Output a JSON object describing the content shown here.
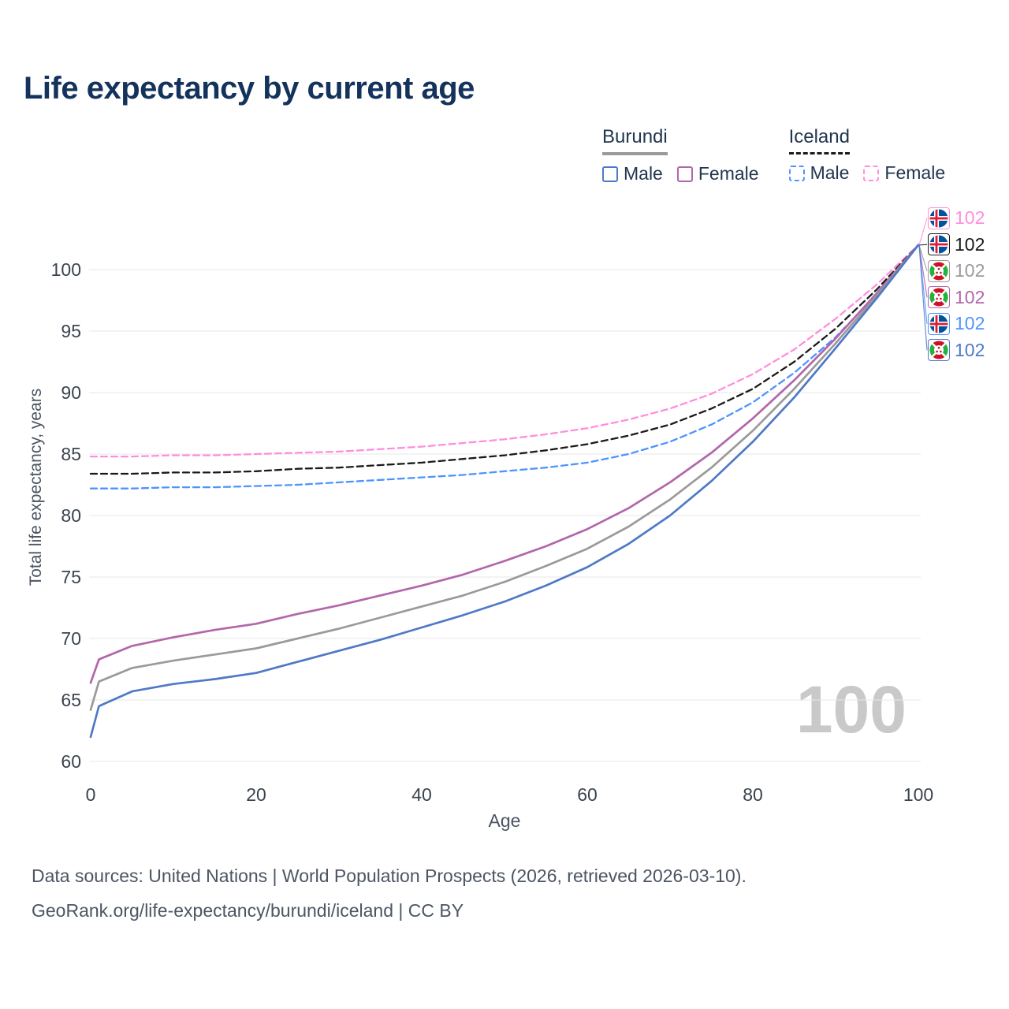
{
  "title": "Life expectancy by current age",
  "watermark": {
    "text": "100"
  },
  "legend": {
    "groups": [
      {
        "name": "Burundi",
        "line_style": "solid",
        "underline_color": "#9a9a9a",
        "items": [
          {
            "label": "Male",
            "color": "#4e79c7"
          },
          {
            "label": "Female",
            "color": "#b266ab"
          }
        ]
      },
      {
        "name": "Iceland",
        "line_style": "dashed",
        "underline_color": "#1a1a1a",
        "items": [
          {
            "label": "Male",
            "color": "#4d94ff"
          },
          {
            "label": "Female",
            "color": "#ff8ede"
          }
        ]
      }
    ]
  },
  "chart_data": {
    "type": "line",
    "title": "Life expectancy by current age",
    "xlabel": "Age",
    "ylabel": "Total life expectancy, years",
    "xlim": [
      0,
      100
    ],
    "ylim": [
      60,
      103
    ],
    "x_ticks": [
      0,
      20,
      40,
      60,
      80,
      100
    ],
    "y_ticks": [
      60,
      65,
      70,
      75,
      80,
      85,
      90,
      95,
      100
    ],
    "grid": "horizontal",
    "legend_position": "top-right",
    "x": [
      0,
      1,
      5,
      10,
      15,
      20,
      25,
      30,
      35,
      40,
      45,
      50,
      55,
      60,
      65,
      70,
      75,
      80,
      85,
      90,
      95,
      100
    ],
    "series": [
      {
        "id": "iceland-female",
        "name": "Iceland Female",
        "color": "#ff8ede",
        "dash": true,
        "values": [
          84.8,
          84.8,
          84.8,
          84.9,
          84.9,
          85.0,
          85.1,
          85.2,
          85.4,
          85.6,
          85.9,
          86.2,
          86.6,
          87.1,
          87.8,
          88.7,
          89.9,
          91.5,
          93.5,
          96.0,
          98.8,
          102.0
        ]
      },
      {
        "id": "iceland-both",
        "name": "Iceland Both sexes",
        "color": "#1a1a1a",
        "dash": true,
        "values": [
          83.4,
          83.4,
          83.4,
          83.5,
          83.5,
          83.6,
          83.8,
          83.9,
          84.1,
          84.3,
          84.6,
          84.9,
          85.3,
          85.8,
          86.5,
          87.4,
          88.7,
          90.3,
          92.5,
          95.2,
          98.4,
          102.0
        ]
      },
      {
        "id": "iceland-male",
        "name": "Iceland Male",
        "color": "#4d94ff",
        "dash": true,
        "values": [
          82.2,
          82.2,
          82.2,
          82.3,
          82.3,
          82.4,
          82.5,
          82.7,
          82.9,
          83.1,
          83.3,
          83.6,
          83.9,
          84.3,
          85.0,
          86.0,
          87.4,
          89.2,
          91.6,
          94.5,
          98.0,
          102.0
        ]
      },
      {
        "id": "burundi-female",
        "name": "Burundi Female",
        "color": "#b266ab",
        "dash": false,
        "values": [
          66.4,
          68.3,
          69.4,
          70.1,
          70.7,
          71.2,
          72.0,
          72.7,
          73.5,
          74.3,
          75.2,
          76.3,
          77.5,
          78.9,
          80.6,
          82.7,
          85.1,
          87.9,
          91.0,
          94.4,
          98.1,
          102.0
        ]
      },
      {
        "id": "burundi-both",
        "name": "Burundi Both sexes",
        "color": "#9a9a9a",
        "dash": false,
        "values": [
          64.2,
          66.5,
          67.6,
          68.2,
          68.7,
          69.2,
          70.0,
          70.8,
          71.7,
          72.6,
          73.5,
          74.6,
          75.9,
          77.3,
          79.1,
          81.3,
          83.9,
          86.9,
          90.3,
          94.0,
          97.9,
          102.0
        ]
      },
      {
        "id": "burundi-male",
        "name": "Burundi Male",
        "color": "#4e79c7",
        "dash": false,
        "values": [
          62.0,
          64.5,
          65.7,
          66.3,
          66.7,
          67.2,
          68.1,
          69.0,
          69.9,
          70.9,
          71.9,
          73.0,
          74.3,
          75.8,
          77.7,
          80.0,
          82.8,
          86.0,
          89.6,
          93.6,
          97.7,
          102.0
        ]
      }
    ]
  },
  "end_labels": [
    {
      "value": "102",
      "color": "#ff8ede",
      "flag": "iceland",
      "series": "iceland-female"
    },
    {
      "value": "102",
      "color": "#1a1a1a",
      "flag": "iceland",
      "series": "iceland-both"
    },
    {
      "value": "102",
      "color": "#9a9a9a",
      "flag": "burundi",
      "series": "burundi-both"
    },
    {
      "value": "102",
      "color": "#b266ab",
      "flag": "burundi",
      "series": "burundi-female"
    },
    {
      "value": "102",
      "color": "#4d94ff",
      "flag": "iceland",
      "series": "iceland-male"
    },
    {
      "value": "102",
      "color": "#4e79c7",
      "flag": "burundi",
      "series": "burundi-male"
    }
  ],
  "footer": {
    "line1": "Data sources: United Nations | World Population Prospects (2026, retrieved 2026-03-10).",
    "line2": "GeoRank.org/life-expectancy/burundi/iceland | CC BY"
  }
}
